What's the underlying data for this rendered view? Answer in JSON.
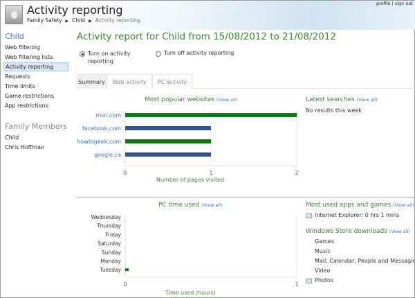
{
  "header": {
    "title": "Activity reporting",
    "breadcrumb": [
      "Family Safety",
      "Child",
      "Activity reporting"
    ],
    "top_links": [
      "profile",
      "sign out"
    ]
  },
  "sidebar": {
    "child_heading": "Child",
    "items": [
      {
        "label": "Web filtering"
      },
      {
        "label": "Web filtering lists"
      },
      {
        "label": "Activity reporting",
        "selected": true
      },
      {
        "label": "Requests"
      },
      {
        "label": "Time limits"
      },
      {
        "label": "Game restrictions"
      },
      {
        "label": "App restrictions"
      }
    ],
    "members_heading": "Family Members",
    "members": [
      "Child",
      "Chris Hoffman"
    ]
  },
  "main": {
    "title": "Activity report for Child from 15/08/2012 to 21/08/2012",
    "radio_on": "Turn on activity reporting",
    "radio_off": "Turn off activity reporting",
    "selected": "on",
    "tabs": [
      {
        "label": "Summary",
        "active": true
      },
      {
        "label": "Web activity"
      },
      {
        "label": "PC activity"
      }
    ],
    "view_all": "(View all)",
    "latest_searches": {
      "title": "Latest searches",
      "text": "No results this week"
    },
    "most_used": {
      "title": "Most used apps and games",
      "items": [
        "Internet Explorer: 0 hrs 1 mins"
      ]
    },
    "store": {
      "title": "Windows Store downloads",
      "items": [
        "Games",
        "Music",
        "Mail, Calendar, People and Messaging",
        "Video",
        "Photos"
      ]
    }
  },
  "colors": {
    "green": "#0f7a14",
    "navy": "#34558b",
    "link": "#3a76c2",
    "title_green": "#3a8a30"
  },
  "chart_data": [
    {
      "type": "bar",
      "title": "Most popular websites",
      "categories": [
        "msn.com",
        "facebook.com",
        "howtogeek.com",
        "google.ca"
      ],
      "values": [
        2,
        1,
        1,
        1
      ],
      "bar_colors": [
        "#0f7a14",
        "#34558b",
        "#0f7a14",
        "#34558b"
      ],
      "xlabel": "Number of pages visited",
      "xlim": [
        0,
        2
      ],
      "xticks": [
        "0",
        "1",
        "2"
      ],
      "grid": true
    },
    {
      "type": "bar",
      "title": "PC time used",
      "categories": [
        "Wednesday",
        "Thursday",
        "Friday",
        "Saturday",
        "Sunday",
        "Monday",
        "Tuesday"
      ],
      "values": [
        0,
        0,
        0,
        0,
        0,
        0,
        0.02
      ],
      "xlabel": "Time used (hours)",
      "xlim": [
        0,
        1
      ],
      "xticks": [
        "0",
        "1"
      ],
      "grid": false
    }
  ]
}
